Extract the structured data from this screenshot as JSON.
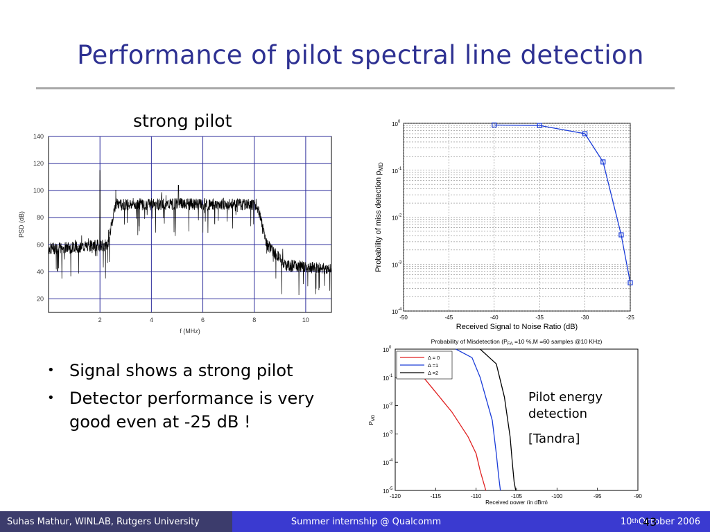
{
  "slide": {
    "title": "Performance of pilot spectral line detection",
    "subtitle": "strong pilot",
    "bullets": [
      "Signal shows a strong pilot",
      "Detector performance is very good even at -25 dB !"
    ],
    "annotation_lines": [
      "Pilot energy",
      "detection"
    ],
    "citation": "[Tandra]",
    "page_number": "43"
  },
  "footer": {
    "author": "Suhas Mathur, WINLAB, Rutgers University",
    "event": "Summer internship @ Qualcomm",
    "date_pre": "10",
    "date_sup": "th",
    "date_post": " October 2006"
  },
  "colors": {
    "title": "#2e3192",
    "footer_left": "#3c3c6c",
    "footer_right": "#3a3ad0"
  },
  "chart_data": [
    {
      "type": "line",
      "xlabel": "f (MHz)",
      "ylabel": "PSD (dB)",
      "xlim": [
        0,
        11
      ],
      "ylim": [
        10,
        140
      ],
      "xticks": [
        "2",
        "4",
        "6",
        "8",
        "10"
      ],
      "yticks": [
        "20",
        "40",
        "60",
        "80",
        "100",
        "120",
        "140"
      ],
      "grid": true,
      "series": [
        {
          "x": [
            0.0,
            2.3,
            2.6,
            8.1,
            8.5,
            9.2,
            11.0
          ],
          "values": [
            57,
            60,
            90,
            90,
            60,
            45,
            42
          ]
        }
      ]
    },
    {
      "type": "line",
      "xlabel": "Received Signal to Noise Ratio (dB)",
      "ylabel": "Probability of miss detection p",
      "ylabel_sub": "MD",
      "y_scale": "log",
      "xlim": [
        -50,
        -25
      ],
      "ylim": [
        0.0001,
        1
      ],
      "xticks": [
        "-50",
        "-45",
        "-40",
        "-35",
        "-30",
        "-25"
      ],
      "yticks": [
        "10",
        "10",
        "10",
        "10",
        "10"
      ],
      "ytick_exp": [
        "-4",
        "-3",
        "-2",
        "-1",
        "0"
      ],
      "grid": true,
      "series": [
        {
          "x": [
            -40,
            -35,
            -30,
            -28,
            -26,
            -25
          ],
          "values": [
            0.92,
            0.9,
            0.6,
            0.15,
            0.0042,
            0.0004
          ]
        }
      ]
    },
    {
      "type": "line",
      "title_parts": [
        "Probability of Misdetection (P",
        "FA",
        " =10 %,M =60 samples @10 KHz)"
      ],
      "xlabel": "Received power (in dBm)",
      "ylabel": "P",
      "ylabel_sub": "MD",
      "y_scale": "log",
      "xlim": [
        -120,
        -90
      ],
      "ylim": [
        1e-05,
        1
      ],
      "xticks": [
        "-120",
        "-115",
        "-110",
        "-105",
        "-100",
        "-95",
        "-90"
      ],
      "yticks": [
        "10",
        "10",
        "10",
        "10",
        "10",
        "10"
      ],
      "ytick_exp": [
        "-5",
        "-4",
        "-3",
        "-2",
        "-1",
        "0"
      ],
      "legend": "top-left",
      "series": [
        {
          "name": "Δ = 0",
          "color": "#e02020",
          "x": [
            -116.5,
            -115,
            -113,
            -111,
            -110,
            -109.5,
            -108.8
          ],
          "values": [
            0.1,
            0.03,
            0.006,
            0.0008,
            0.0002,
            5e-05,
            1e-05
          ]
        },
        {
          "name": "Δ =1",
          "color": "#1a3cd8",
          "x": [
            -112.5,
            -110.5,
            -109.5,
            -108,
            -107.5,
            -107.2,
            -107.0
          ],
          "values": [
            1.0,
            0.5,
            0.1,
            0.003,
            0.0002,
            3e-05,
            1e-05
          ]
        },
        {
          "name": "Δ =2",
          "color": "#000000",
          "x": [
            -109.5,
            -107.5,
            -106.5,
            -105.8,
            -105.5,
            -105.3,
            -105.1
          ],
          "values": [
            1.0,
            0.3,
            0.02,
            0.0008,
            8e-05,
            2e-05,
            1e-05
          ]
        }
      ]
    }
  ]
}
